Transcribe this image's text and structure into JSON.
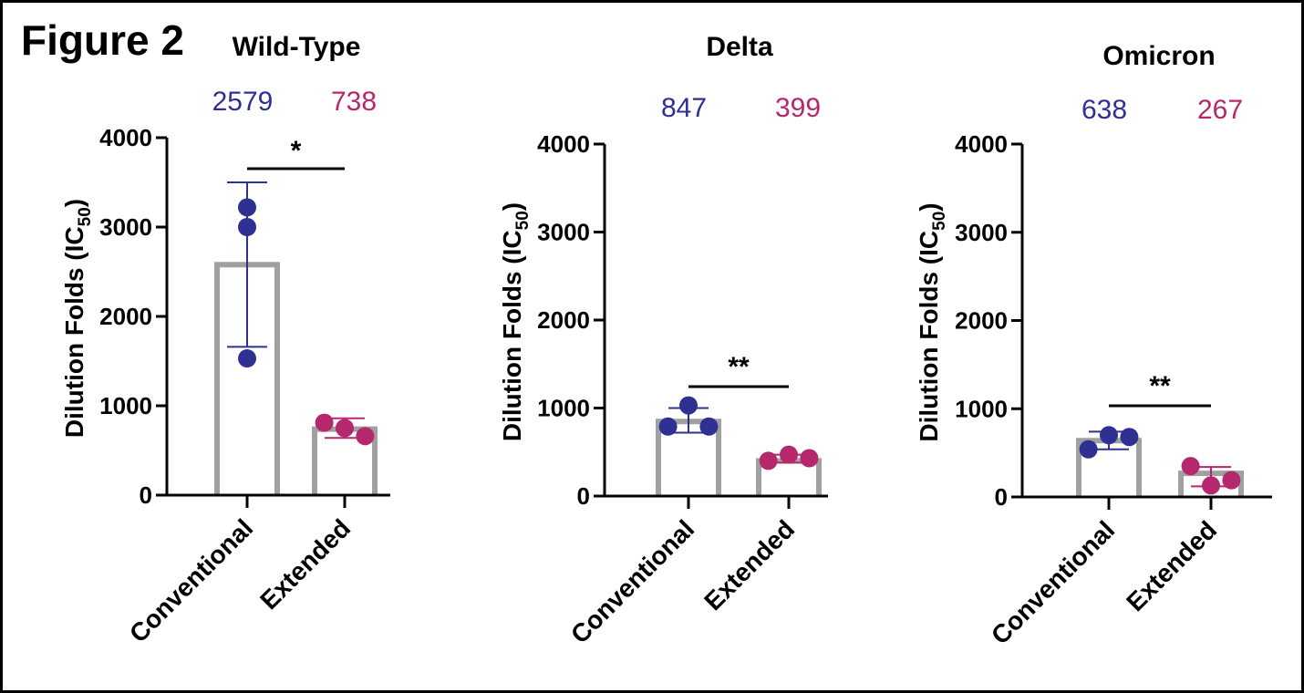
{
  "figure_label": "Figure 2",
  "colors": {
    "conventional": "#2e3192",
    "extended": "#b5286d",
    "bar": "#a0a0a0",
    "axis": "#000000"
  },
  "chart_data": [
    {
      "type": "bar",
      "title": "Wild-Type",
      "ylabel": "Dilution Folds (IC50)",
      "ylim": [
        0,
        4000
      ],
      "yticks": [
        "0",
        "1000",
        "2000",
        "3000",
        "4000"
      ],
      "categories": [
        "Conventional",
        "Extended"
      ],
      "means_text": [
        "2579",
        "738"
      ],
      "values": [
        2579,
        738
      ],
      "error": [
        [
          1660,
          3500
        ],
        [
          640,
          860
        ]
      ],
      "points": [
        [
          3220,
          3000,
          1530
        ],
        [
          810,
          750,
          660
        ]
      ],
      "significance": "*"
    },
    {
      "type": "bar",
      "title": "Delta",
      "ylabel": "Dilution Folds (IC50)",
      "ylim": [
        0,
        4000
      ],
      "yticks": [
        "0",
        "1000",
        "2000",
        "3000",
        "4000"
      ],
      "categories": [
        "Conventional",
        "Extended"
      ],
      "means_text": [
        "847",
        "399"
      ],
      "values": [
        847,
        399
      ],
      "error": [
        [
          720,
          1000
        ],
        [
          380,
          470
        ]
      ],
      "points": [
        [
          790,
          1030,
          790
        ],
        [
          400,
          470,
          430
        ]
      ],
      "significance": "**"
    },
    {
      "type": "bar",
      "title": "Omicron",
      "ylabel": "Dilution Folds (IC50)",
      "ylim": [
        0,
        4000
      ],
      "yticks": [
        "0",
        "1000",
        "2000",
        "3000",
        "4000"
      ],
      "categories": [
        "Conventional",
        "Extended"
      ],
      "means_text": [
        "638",
        "267"
      ],
      "values": [
        638,
        267
      ],
      "error": [
        [
          540,
          740
        ],
        [
          120,
          340
        ]
      ],
      "points": [
        [
          540,
          700,
          680
        ],
        [
          350,
          130,
          190
        ]
      ],
      "significance": "**"
    }
  ]
}
